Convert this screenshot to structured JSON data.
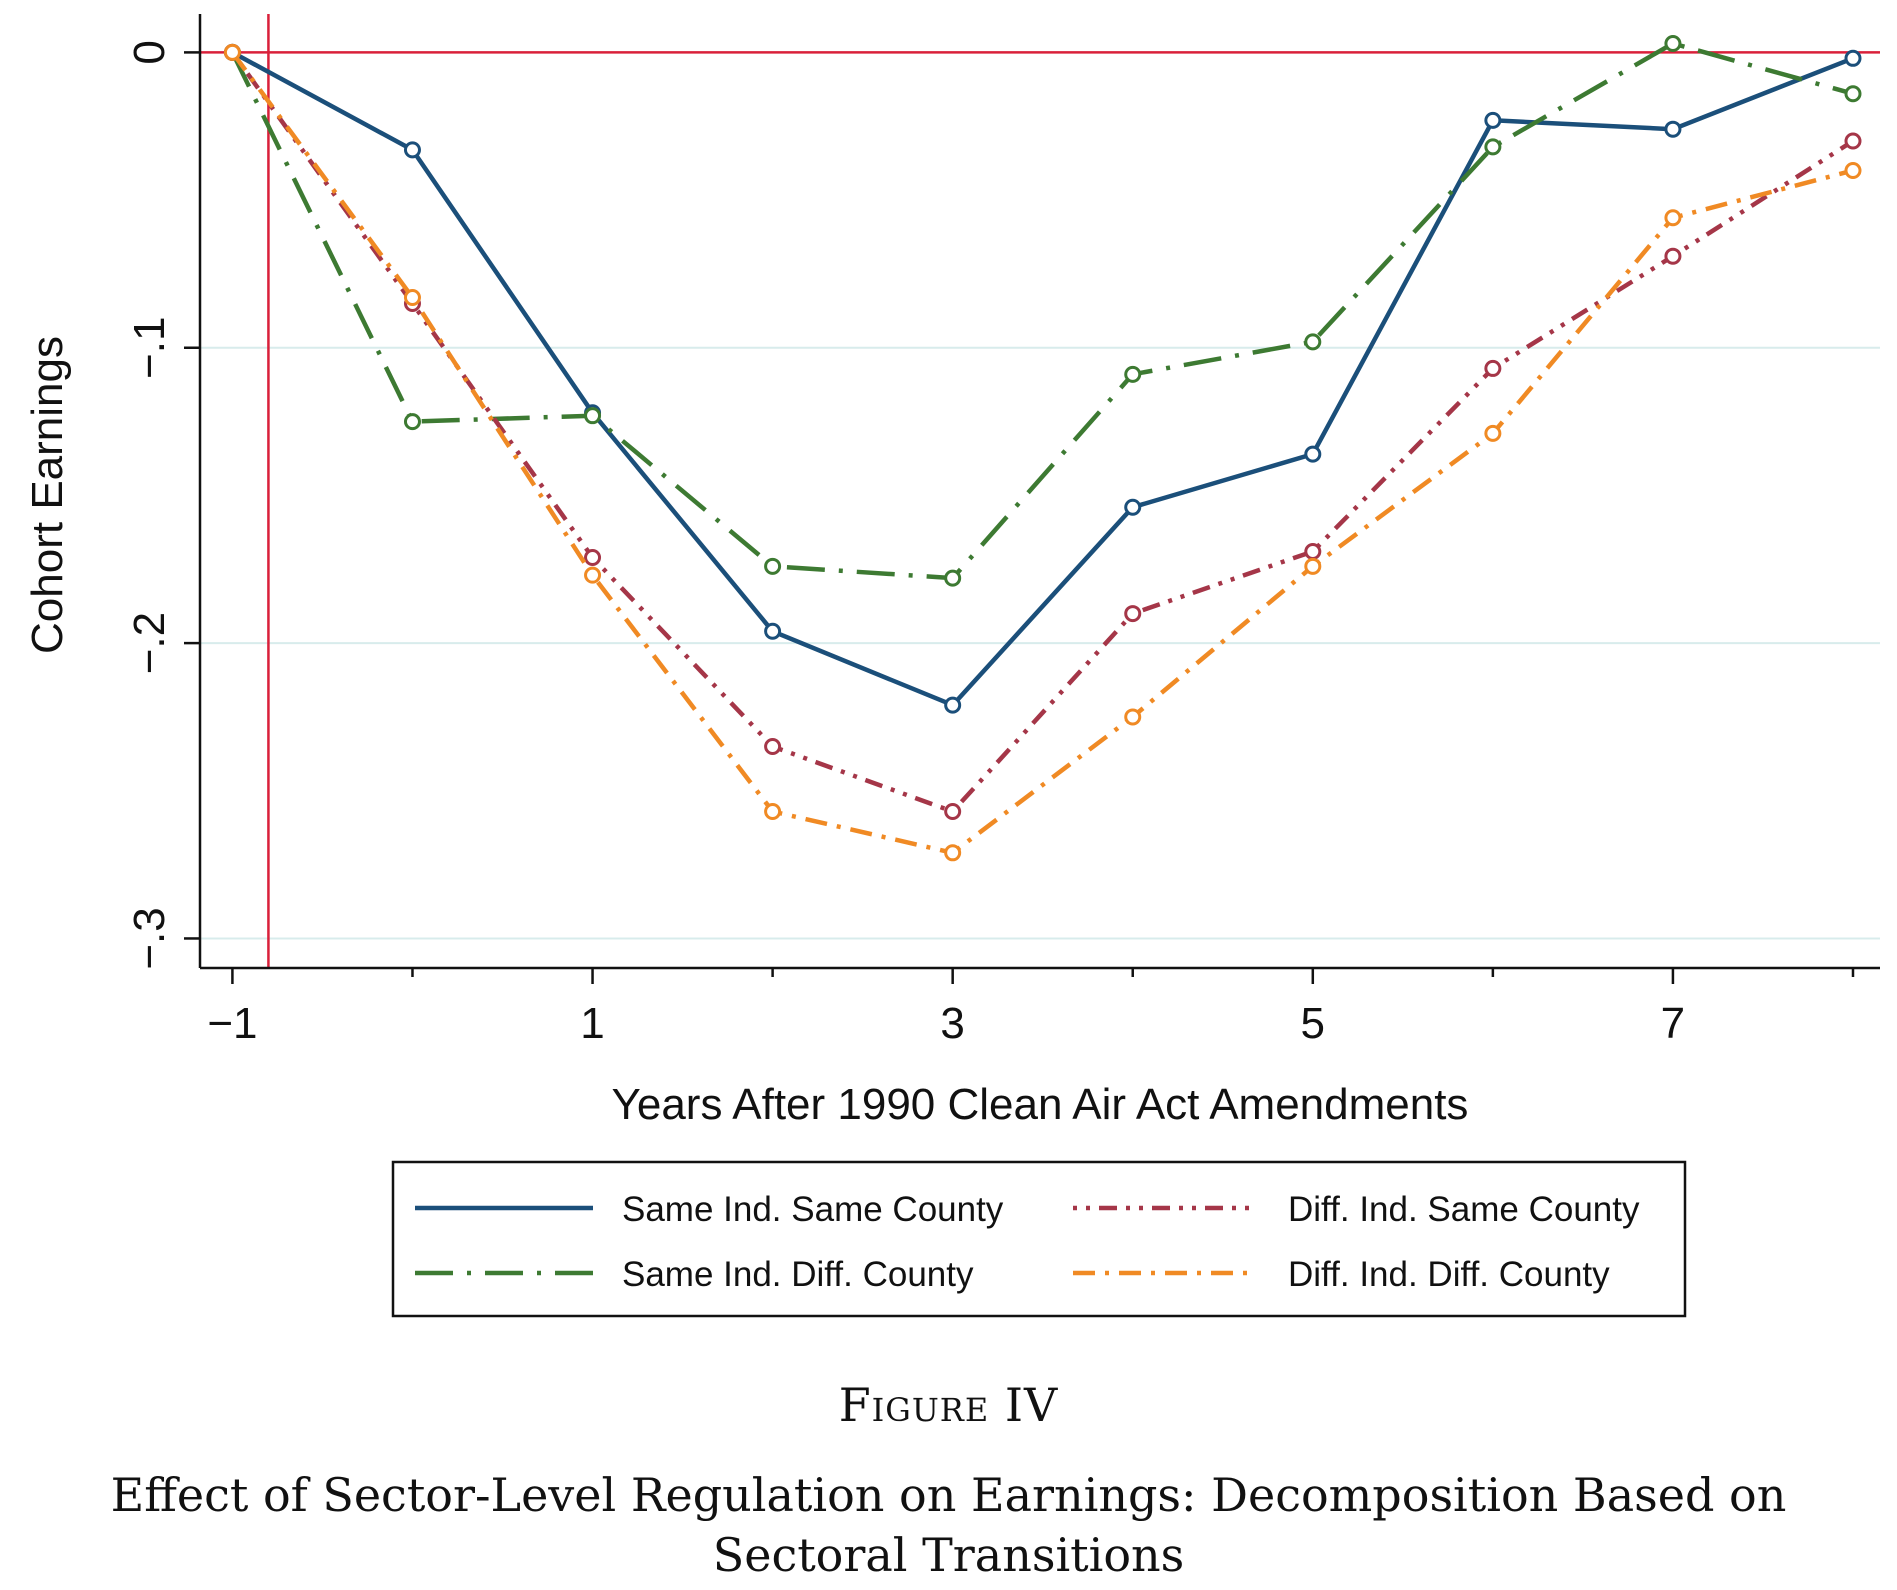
{
  "figure": {
    "label": "Figure IV",
    "caption": "Effect of Sector-Level Regulation on Earnings: Decomposition Based on Sectoral Transitions"
  },
  "chart_data": {
    "type": "line",
    "title": "",
    "xlabel": "Years After 1990 Clean Air Act Amendments",
    "ylabel": "Cohort Earnings",
    "x": [
      -1,
      0,
      1,
      2,
      3,
      4,
      5,
      6,
      7,
      8
    ],
    "xlim": [
      -1.18,
      8.15
    ],
    "ylim": [
      -0.31,
      0.013
    ],
    "xticks": [
      -1,
      1,
      3,
      5,
      7
    ],
    "xtick_labels": [
      "−1",
      "1",
      "3",
      "5",
      "7"
    ],
    "yticks": [
      0,
      -0.1,
      -0.2,
      -0.3
    ],
    "ytick_labels": [
      "0",
      "−.1",
      "−.2",
      "−.3"
    ],
    "gridlines_y": [
      -0.1,
      -0.2,
      -0.3
    ],
    "reference_lines": {
      "horizontal_y": 0,
      "vertical_x": -0.8,
      "color": "#d9203a"
    },
    "legend_position": "bottom",
    "series": [
      {
        "name": "Same Ind. Same County",
        "color": "#1b4f7a",
        "dash": "solid",
        "values": [
          0,
          -0.033,
          -0.122,
          -0.196,
          -0.221,
          -0.154,
          -0.136,
          -0.023,
          -0.026,
          -0.002
        ]
      },
      {
        "name": "Same Ind. Diff. County",
        "color": "#3d7a32",
        "dash": "longdashdot",
        "values": [
          0,
          -0.125,
          -0.123,
          -0.174,
          -0.178,
          -0.109,
          -0.098,
          -0.032,
          0.003,
          -0.014
        ]
      },
      {
        "name": "Diff. Ind. Same County",
        "color": "#a53648",
        "dash": "dotdash",
        "values": [
          0,
          -0.085,
          -0.171,
          -0.235,
          -0.257,
          -0.19,
          -0.169,
          -0.107,
          -0.069,
          -0.03
        ]
      },
      {
        "name": "Diff. Ind. Diff. County",
        "color": "#f08a24",
        "dash": "dashdot",
        "values": [
          0,
          -0.083,
          -0.177,
          -0.257,
          -0.271,
          -0.225,
          -0.174,
          -0.129,
          -0.056,
          -0.04
        ]
      }
    ]
  }
}
